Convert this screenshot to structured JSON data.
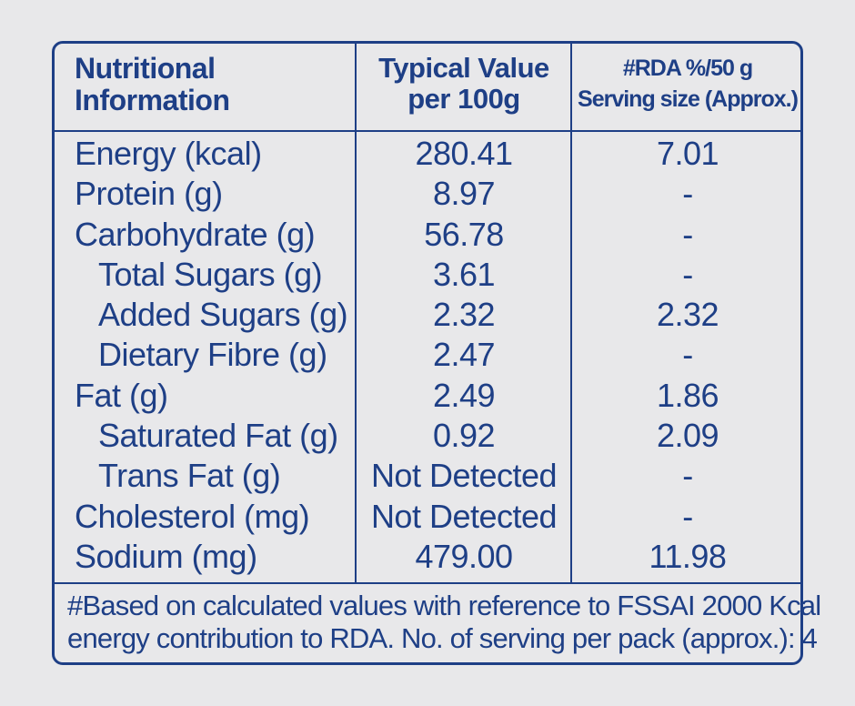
{
  "header": {
    "col1_line1": "Nutritional",
    "col1_line2": "Information",
    "col2_line1": "Typical Value",
    "col2_line2": "per 100g",
    "col3_line1": "#RDA %/50 g",
    "col3_line2": "Serving size (Approx.)"
  },
  "rows": [
    {
      "name": "Energy (kcal)",
      "value": "280.41",
      "rda": "7.01"
    },
    {
      "name": "Protein (g)",
      "value": "8.97",
      "rda": "-"
    },
    {
      "name": "Carbohydrate (g)",
      "value": "56.78",
      "rda": "-"
    },
    {
      "name": "Total Sugars (g)",
      "value": "3.61",
      "rda": "-"
    },
    {
      "name": "Added Sugars (g)",
      "value": "2.32",
      "rda": "2.32"
    },
    {
      "name": "Dietary Fibre (g)",
      "value": "2.47",
      "rda": "-"
    },
    {
      "name": "Fat (g)",
      "value": "2.49",
      "rda": "1.86"
    },
    {
      "name": "Saturated Fat (g)",
      "value": "0.92",
      "rda": "2.09"
    },
    {
      "name": "Trans Fat (g)",
      "value": "Not Detected",
      "rda": "-"
    },
    {
      "name": "Cholesterol (mg)",
      "value": "Not Detected",
      "rda": "-"
    },
    {
      "name": "Sodium (mg)",
      "value": "479.00",
      "rda": "11.98"
    }
  ],
  "footnote": {
    "line1": "#Based on calculated values with reference to FSSAI 2000 Kcal",
    "line2": "energy contribution to RDA. No. of serving per pack (approx.): 4"
  },
  "colors": {
    "ink": "#1e3f86",
    "background": "#e8e8ea"
  }
}
